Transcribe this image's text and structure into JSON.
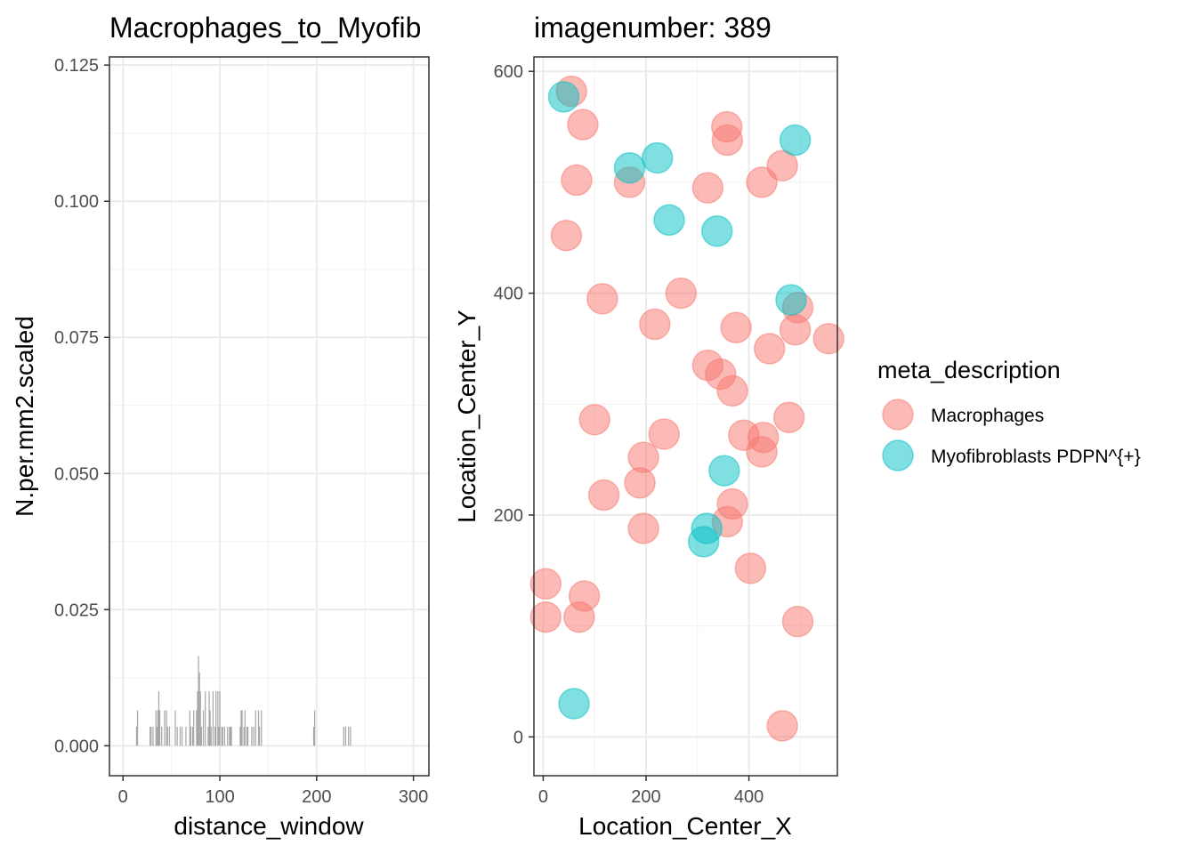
{
  "chart_data": [
    {
      "type": "bar",
      "title": "Macrophages_to_Myofib",
      "xlabel": "distance_window",
      "ylabel": "N.per.mm2.scaled",
      "xlim": [
        -14,
        316
      ],
      "ylim": [
        -0.0055,
        0.1265
      ],
      "x_ticks": [
        0,
        100,
        200,
        300
      ],
      "y_ticks": [
        0.0,
        0.025,
        0.05,
        0.075,
        0.1,
        0.125
      ],
      "x_tick_labels": [
        "0",
        "100",
        "200",
        "300"
      ],
      "y_tick_labels": [
        "0.000",
        "0.025",
        "0.050",
        "0.075",
        "0.100",
        "0.125"
      ],
      "grid": true,
      "bar_color": "#a6a6a6",
      "x": [
        14,
        15,
        28,
        29,
        31,
        34,
        35,
        36,
        37,
        38,
        40,
        43,
        45,
        46,
        48,
        54,
        56,
        59,
        61,
        65,
        69,
        70,
        72,
        73,
        76,
        77,
        78,
        79,
        80,
        81,
        83,
        85,
        88,
        89,
        90,
        91,
        93,
        95,
        96,
        98,
        99,
        100,
        102,
        103,
        105,
        108,
        110,
        111,
        112,
        121,
        122,
        123,
        125,
        126,
        128,
        129,
        133,
        135,
        137,
        140,
        141,
        143,
        197,
        198,
        228,
        230,
        233,
        235
      ],
      "values": [
        0.0035,
        0.0065,
        0.0035,
        0.0035,
        0.0035,
        0.0065,
        0.0035,
        0.0065,
        0.01,
        0.0065,
        0.0035,
        0.0065,
        0.0065,
        0.0035,
        0.0035,
        0.0065,
        0.0035,
        0.0035,
        0.0035,
        0.0035,
        0.0065,
        0.0035,
        0.0035,
        0.0065,
        0.0065,
        0.01,
        0.0165,
        0.0135,
        0.01,
        0.0035,
        0.0065,
        0.01,
        0.0035,
        0.01,
        0.0065,
        0.0035,
        0.01,
        0.0035,
        0.01,
        0.01,
        0.0035,
        0.01,
        0.0035,
        0.0035,
        0.0035,
        0.0035,
        0.0035,
        0.0035,
        0.0035,
        0.0035,
        0.0065,
        0.0065,
        0.0035,
        0.0065,
        0.0035,
        0.0035,
        0.0035,
        0.0035,
        0.0065,
        0.0065,
        0.0035,
        0.0065,
        0.0035,
        0.0065,
        0.0035,
        0.0035,
        0.0035,
        0.0035
      ]
    },
    {
      "type": "scatter",
      "title": "imagenumber:  389",
      "xlabel": "Location_Center_X",
      "ylabel": "Location_Center_Y",
      "xlim": [
        -18,
        572
      ],
      "ylim": [
        -35,
        613
      ],
      "x_ticks": [
        0,
        200,
        400
      ],
      "y_ticks": [
        0,
        200,
        400,
        600
      ],
      "x_tick_labels": [
        "0",
        "200",
        "400"
      ],
      "y_tick_labels": [
        "0",
        "200",
        "400",
        "600"
      ],
      "grid": true,
      "legend": {
        "title": "meta_description",
        "placement": "right",
        "items": [
          {
            "label": "Macrophages",
            "color": "#f8766d"
          },
          {
            "label": "Myofibroblasts PDPN^{+}",
            "color": "#00bfc4"
          }
        ]
      },
      "series": [
        {
          "name": "Macrophages",
          "color": "#f8766d",
          "points": [
            [
              55,
              582
            ],
            [
              77,
              552
            ],
            [
              65,
              502
            ],
            [
              45,
              452
            ],
            [
              168,
              500
            ],
            [
              320,
              495
            ],
            [
              357,
              550
            ],
            [
              358,
              538
            ],
            [
              425,
              500
            ],
            [
              465,
              515
            ],
            [
              115,
              395
            ],
            [
              268,
              400
            ],
            [
              217,
              372
            ],
            [
              375,
              369
            ],
            [
              495,
              387
            ],
            [
              490,
              367
            ],
            [
              555,
              359
            ],
            [
              440,
              350
            ],
            [
              320,
              335
            ],
            [
              345,
              327
            ],
            [
              368,
              312
            ],
            [
              100,
              286
            ],
            [
              478,
              288
            ],
            [
              390,
              272
            ],
            [
              428,
              270
            ],
            [
              235,
              273
            ],
            [
              425,
              257
            ],
            [
              195,
              252
            ],
            [
              188,
              229
            ],
            [
              118,
              218
            ],
            [
              368,
              210
            ],
            [
              358,
              194
            ],
            [
              195,
              188
            ],
            [
              403,
              152
            ],
            [
              5,
              138
            ],
            [
              80,
              127
            ],
            [
              5,
              108
            ],
            [
              70,
              108
            ],
            [
              495,
              104
            ],
            [
              465,
              10
            ]
          ]
        },
        {
          "name": "Myofibroblasts PDPN^{+}",
          "color": "#00bfc4",
          "points": [
            [
              40,
              577
            ],
            [
              490,
              538
            ],
            [
              222,
              522
            ],
            [
              168,
              513
            ],
            [
              245,
              466
            ],
            [
              338,
              456
            ],
            [
              482,
              394
            ],
            [
              352,
              240
            ],
            [
              318,
              188
            ],
            [
              312,
              176
            ],
            [
              60,
              30
            ]
          ]
        }
      ]
    }
  ]
}
